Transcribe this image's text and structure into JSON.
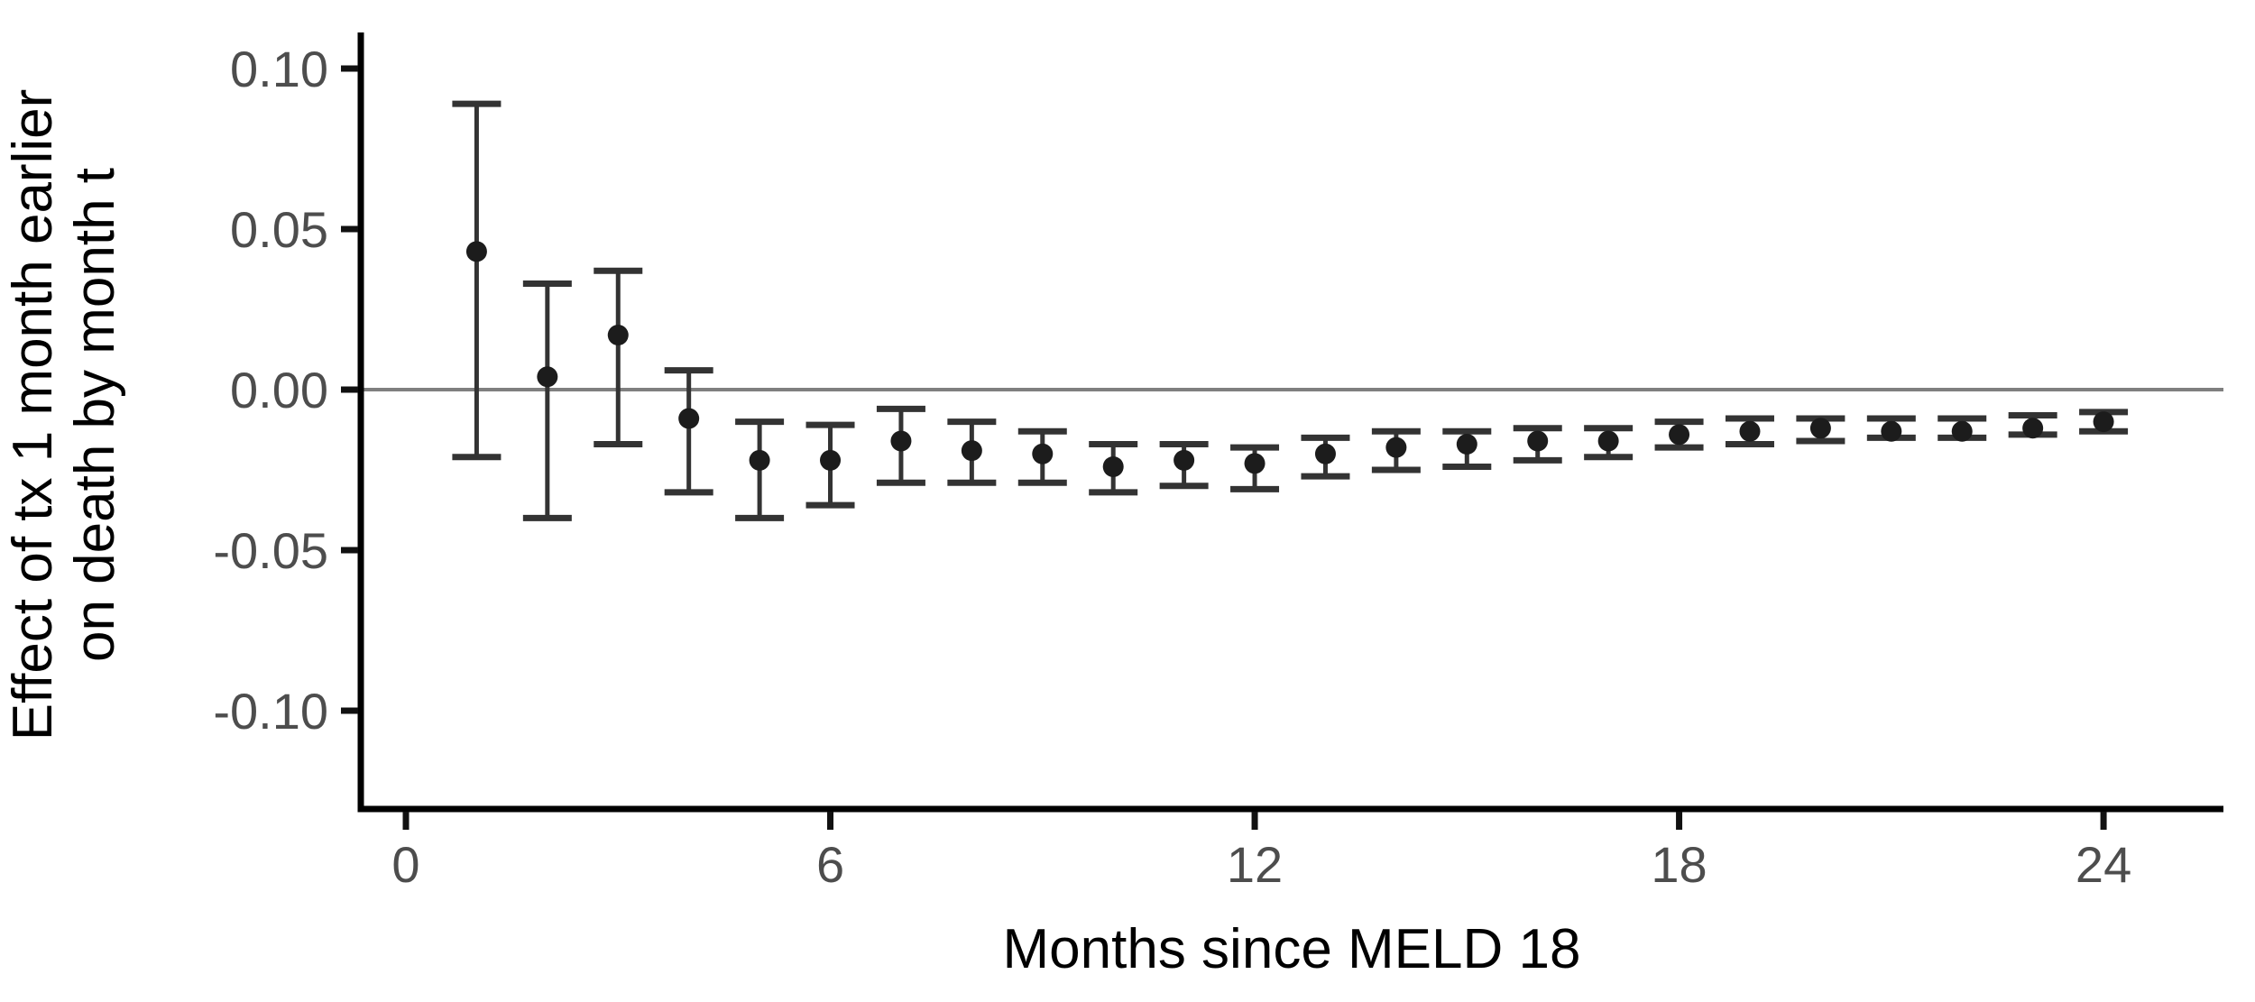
{
  "chart_data": {
    "type": "scatter",
    "subtype": "pointrange-errorbar",
    "title": "",
    "xlabel": "Months since MELD 18",
    "ylabel": "Effect of tx 1 month earlier\non death by month t",
    "x_ticks": [
      0,
      6,
      12,
      18,
      24
    ],
    "y_ticks": [
      {
        "value": 0.1,
        "label": "0.10"
      },
      {
        "value": 0.05,
        "label": "0.05"
      },
      {
        "value": 0.0,
        "label": "0.00"
      },
      {
        "value": -0.05,
        "label": "-0.05"
      },
      {
        "value": -0.1,
        "label": "-0.10"
      }
    ],
    "xlim": [
      -0.6,
      25.7
    ],
    "ylim": [
      -0.131,
      0.111
    ],
    "grid": false,
    "legend": false,
    "reference_line_y": 0,
    "points": [
      {
        "month": 1,
        "estimate": 0.043,
        "lower": -0.021,
        "upper": 0.089
      },
      {
        "month": 2,
        "estimate": 0.004,
        "lower": -0.04,
        "upper": 0.033
      },
      {
        "month": 3,
        "estimate": 0.017,
        "lower": -0.017,
        "upper": 0.037
      },
      {
        "month": 4,
        "estimate": -0.009,
        "lower": -0.032,
        "upper": 0.006
      },
      {
        "month": 5,
        "estimate": -0.022,
        "lower": -0.04,
        "upper": -0.01
      },
      {
        "month": 6,
        "estimate": -0.022,
        "lower": -0.036,
        "upper": -0.011
      },
      {
        "month": 7,
        "estimate": -0.016,
        "lower": -0.029,
        "upper": -0.006
      },
      {
        "month": 8,
        "estimate": -0.019,
        "lower": -0.029,
        "upper": -0.01
      },
      {
        "month": 9,
        "estimate": -0.02,
        "lower": -0.029,
        "upper": -0.013
      },
      {
        "month": 10,
        "estimate": -0.024,
        "lower": -0.032,
        "upper": -0.017
      },
      {
        "month": 11,
        "estimate": -0.022,
        "lower": -0.03,
        "upper": -0.017
      },
      {
        "month": 12,
        "estimate": -0.023,
        "lower": -0.031,
        "upper": -0.018
      },
      {
        "month": 13,
        "estimate": -0.02,
        "lower": -0.027,
        "upper": -0.015
      },
      {
        "month": 14,
        "estimate": -0.018,
        "lower": -0.025,
        "upper": -0.013
      },
      {
        "month": 15,
        "estimate": -0.017,
        "lower": -0.024,
        "upper": -0.013
      },
      {
        "month": 16,
        "estimate": -0.016,
        "lower": -0.022,
        "upper": -0.012
      },
      {
        "month": 17,
        "estimate": -0.016,
        "lower": -0.021,
        "upper": -0.012
      },
      {
        "month": 18,
        "estimate": -0.014,
        "lower": -0.018,
        "upper": -0.01
      },
      {
        "month": 19,
        "estimate": -0.013,
        "lower": -0.017,
        "upper": -0.009
      },
      {
        "month": 20,
        "estimate": -0.012,
        "lower": -0.016,
        "upper": -0.009
      },
      {
        "month": 21,
        "estimate": -0.013,
        "lower": -0.015,
        "upper": -0.009
      },
      {
        "month": 22,
        "estimate": -0.013,
        "lower": -0.015,
        "upper": -0.009
      },
      {
        "month": 23,
        "estimate": -0.012,
        "lower": -0.014,
        "upper": -0.008
      },
      {
        "month": 24,
        "estimate": -0.01,
        "lower": -0.013,
        "upper": -0.007
      }
    ],
    "style": {
      "axis_color": "#000000",
      "tick_color": "#111111",
      "tick_label_color": "#4d4d4d",
      "title_color": "#000000",
      "zero_line_color": "#7f7f7f",
      "errorbar_color": "#333333",
      "point_color": "#1c1c1c",
      "background_color": "#ffffff"
    }
  }
}
